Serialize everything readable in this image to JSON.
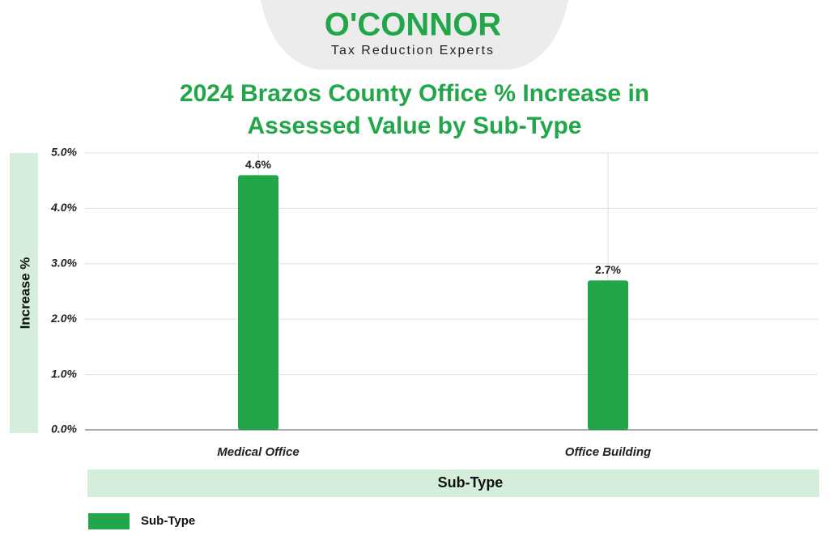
{
  "header": {
    "brand": "O'CONNOR",
    "tagline": "Tax Reduction Experts"
  },
  "chart_data": {
    "type": "bar",
    "title": "2024 Brazos County Office % Increase in Assessed Value by Sub-Type",
    "x_label": "Sub-Type",
    "y_label": "Increase %",
    "categories": [
      "Medical Office",
      "Office Building"
    ],
    "series": [
      {
        "name": "Sub-Type",
        "color": "#22a64a",
        "values": [
          4.6,
          2.7
        ],
        "value_labels": [
          "4.6%",
          "2.7%"
        ]
      }
    ],
    "ylim": [
      0,
      5
    ],
    "yticks": [
      {
        "value": 0,
        "label": "0.0%"
      },
      {
        "value": 1,
        "label": "1.0%"
      },
      {
        "value": 2,
        "label": "2.0%"
      },
      {
        "value": 3,
        "label": "3.0%"
      },
      {
        "value": 4,
        "label": "4.0%"
      },
      {
        "value": 5,
        "label": "5.0%"
      }
    ],
    "grid": true,
    "legend": "bottom-left"
  }
}
